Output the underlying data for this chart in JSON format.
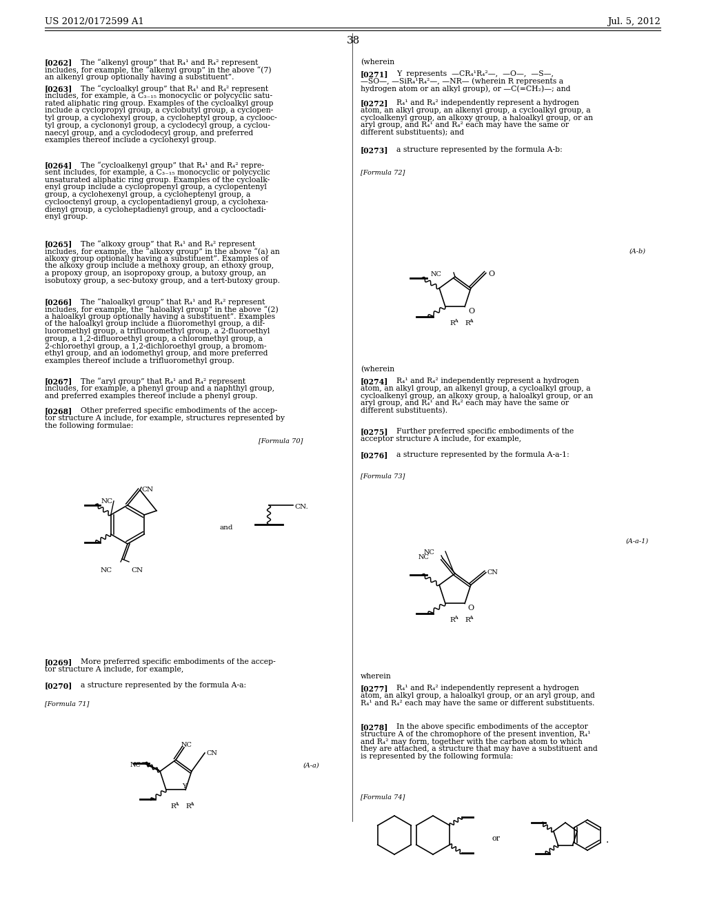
{
  "background_color": "#ffffff",
  "header_left": "US 2012/0172599 A1",
  "header_right": "Jul. 5, 2012",
  "page_number": "38"
}
